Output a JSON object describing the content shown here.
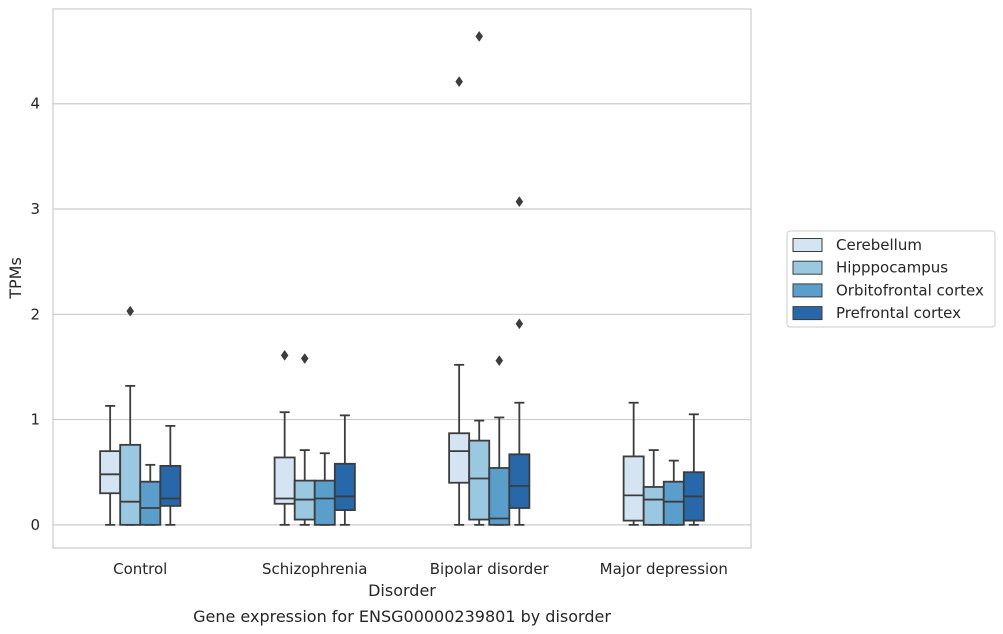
{
  "caption": "Gene expression for ENSG00000239801 by disorder",
  "chart_data": {
    "type": "boxplot",
    "title": "",
    "xlabel": "Disorder",
    "ylabel": "TPMs",
    "ylim": [
      -0.22,
      4.9
    ],
    "yticks": [
      0,
      1,
      2,
      3,
      4
    ],
    "grid": "horizontal",
    "legend_position": "right",
    "categories": [
      "Control",
      "Schizophrenia",
      "Bipolar disorder",
      "Major depression"
    ],
    "series": [
      {
        "name": "Cerebellum",
        "color": "#d4e4f2",
        "boxes": [
          {
            "whisker_low": 0.0,
            "q1": 0.3,
            "median": 0.48,
            "q3": 0.7,
            "whisker_high": 1.13,
            "outliers": []
          },
          {
            "whisker_low": 0.0,
            "q1": 0.2,
            "median": 0.25,
            "q3": 0.64,
            "whisker_high": 1.07,
            "outliers": [
              1.61
            ]
          },
          {
            "whisker_low": 0.0,
            "q1": 0.4,
            "median": 0.7,
            "q3": 0.87,
            "whisker_high": 1.52,
            "outliers": [
              4.21
            ]
          },
          {
            "whisker_low": 0.0,
            "q1": 0.04,
            "median": 0.28,
            "q3": 0.65,
            "whisker_high": 1.16,
            "outliers": []
          }
        ]
      },
      {
        "name": "Hipppocampus",
        "color": "#9ac8e0",
        "boxes": [
          {
            "whisker_low": 0.0,
            "q1": 0.0,
            "median": 0.22,
            "q3": 0.76,
            "whisker_high": 1.32,
            "outliers": [
              2.03
            ]
          },
          {
            "whisker_low": 0.0,
            "q1": 0.05,
            "median": 0.24,
            "q3": 0.42,
            "whisker_high": 0.71,
            "outliers": [
              1.58
            ]
          },
          {
            "whisker_low": 0.0,
            "q1": 0.05,
            "median": 0.44,
            "q3": 0.8,
            "whisker_high": 0.99,
            "outliers": [
              4.64
            ]
          },
          {
            "whisker_low": 0.0,
            "q1": 0.0,
            "median": 0.24,
            "q3": 0.36,
            "whisker_high": 0.71,
            "outliers": []
          }
        ]
      },
      {
        "name": "Orbitofrontal cortex",
        "color": "#5a9ecc",
        "boxes": [
          {
            "whisker_low": 0.0,
            "q1": 0.0,
            "median": 0.16,
            "q3": 0.41,
            "whisker_high": 0.57,
            "outliers": []
          },
          {
            "whisker_low": 0.0,
            "q1": 0.0,
            "median": 0.25,
            "q3": 0.42,
            "whisker_high": 0.68,
            "outliers": []
          },
          {
            "whisker_low": 0.0,
            "q1": 0.0,
            "median": 0.06,
            "q3": 0.54,
            "whisker_high": 1.02,
            "outliers": [
              1.56
            ]
          },
          {
            "whisker_low": 0.0,
            "q1": 0.0,
            "median": 0.22,
            "q3": 0.41,
            "whisker_high": 0.61,
            "outliers": []
          }
        ]
      },
      {
        "name": "Prefrontal cortex",
        "color": "#2668aa",
        "boxes": [
          {
            "whisker_low": 0.0,
            "q1": 0.18,
            "median": 0.25,
            "q3": 0.56,
            "whisker_high": 0.94,
            "outliers": []
          },
          {
            "whisker_low": 0.0,
            "q1": 0.14,
            "median": 0.27,
            "q3": 0.58,
            "whisker_high": 1.04,
            "outliers": []
          },
          {
            "whisker_low": 0.0,
            "q1": 0.16,
            "median": 0.37,
            "q3": 0.67,
            "whisker_high": 1.16,
            "outliers": [
              1.91,
              3.07
            ]
          },
          {
            "whisker_low": 0.0,
            "q1": 0.04,
            "median": 0.27,
            "q3": 0.5,
            "whisker_high": 1.05,
            "outliers": []
          }
        ]
      }
    ]
  }
}
